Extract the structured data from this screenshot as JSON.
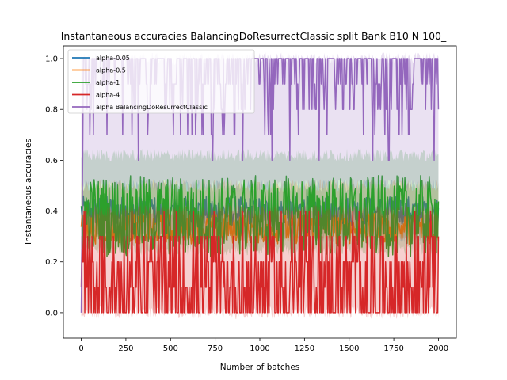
{
  "chart_data": {
    "type": "line",
    "title": "Instantaneous accuracies BalancingDoResurrectClassic split Bank B10 N 100_",
    "xlabel": "Number of batches",
    "ylabel": "Instantaneous accuracies",
    "xlim": [
      -100,
      2100
    ],
    "ylim": [
      -0.1,
      1.05
    ],
    "xticks": [
      0,
      250,
      500,
      750,
      1000,
      1250,
      1500,
      1750,
      2000
    ],
    "yticks": [
      0.0,
      0.2,
      0.4,
      0.6,
      0.8,
      1.0
    ],
    "xtick_labels": [
      "0",
      "250",
      "500",
      "750",
      "1000",
      "1250",
      "1500",
      "1750",
      "2000"
    ],
    "ytick_labels": [
      "0.0",
      "0.2",
      "0.4",
      "0.6",
      "0.8",
      "1.0"
    ],
    "grid": false,
    "legend_position": "top-left",
    "x_range": [
      0,
      2000
    ],
    "series": [
      {
        "name": "alpha-0.05",
        "color": "#1f77b4",
        "approx_mean": 0.4,
        "approx_band": [
          0.3,
          0.5
        ],
        "approx_noise": 0.03
      },
      {
        "name": "alpha-0.5",
        "color": "#ff7f0e",
        "approx_mean": 0.33,
        "approx_band": [
          0.3,
          0.5
        ],
        "approx_noise": 0.03
      },
      {
        "name": "alpha-1",
        "color": "#2ca02c",
        "approx_mean": 0.38,
        "approx_band": [
          0.25,
          0.62
        ],
        "approx_noise": 0.08
      },
      {
        "name": "alpha-4",
        "color": "#d62728",
        "approx_mean": 0.12,
        "approx_band": [
          0.0,
          0.4
        ],
        "approx_noise": 0.15
      },
      {
        "name": "alpha BalancingDoResurrectClassic",
        "color": "#9467bd",
        "approx_mean": 0.92,
        "approx_band": [
          0.5,
          1.0
        ],
        "approx_noise": 0.1
      }
    ]
  }
}
